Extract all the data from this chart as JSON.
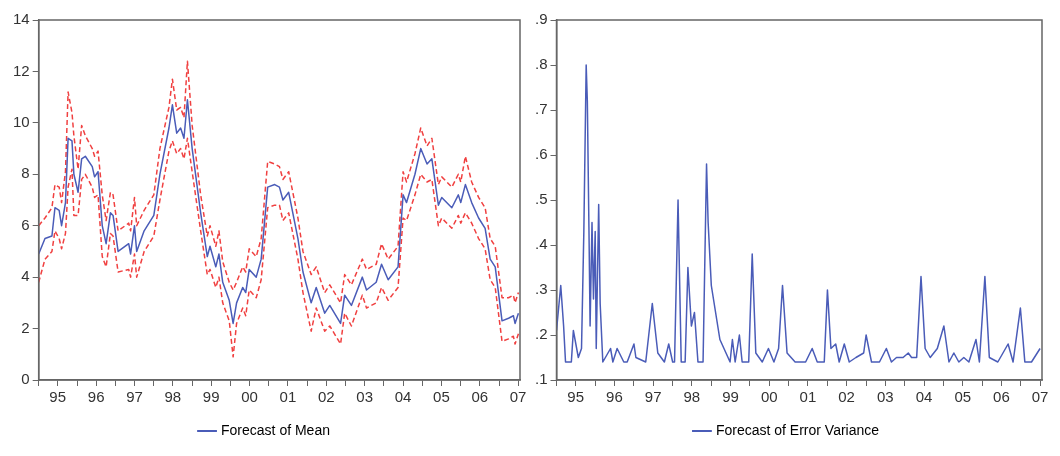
{
  "chart_data": [
    {
      "type": "line",
      "marker": "none",
      "legend": "bottom",
      "x": [
        "1995-01-01",
        "1995-03-02",
        "1995-05-07",
        "1995-06-05",
        "1995-07-15",
        "1995-08-07",
        "1995-09-13",
        "1995-10-08",
        "1995-11-14",
        "1995-12-02",
        "1996-01-11",
        "1996-02-14",
        "1996-03-20",
        "1996-05-25",
        "1996-06-16",
        "1996-07-19",
        "1996-08-28",
        "1996-10-04",
        "1996-11-14",
        "1996-12-09",
        "1997-01-26",
        "1997-05-07",
        "1997-05-25",
        "1997-07-01",
        "1997-07-22",
        "1997-10-01",
        "1998-01-01",
        "1998-02-28",
        "1998-05-25",
        "1998-06-27",
        "1998-08-07",
        "1998-09-13",
        "1998-10-15",
        "1998-11-17",
        "1999-01-01",
        "1999-03-23",
        "1999-05-25",
        "1999-06-20",
        "1999-08-14",
        "1999-09-13",
        "1999-10-19",
        "1999-12-20",
        "2000-01-26",
        "2000-02-28",
        "2000-04-26",
        "2000-05-25",
        "2000-06-27",
        "2000-09-02",
        "2000-10-19",
        "2000-12-20",
        "2001-02-25",
        "2001-04-11",
        "2001-05-14",
        "2001-07-08",
        "2001-10-04",
        "2001-11-21",
        "2002-02-07",
        "2002-03-27",
        "2002-06-16",
        "2002-08-03",
        "2002-11-14",
        "2002-12-23",
        "2003-02-25",
        "2003-06-09",
        "2003-07-19",
        "2003-10-19",
        "2003-12-09",
        "2004-02-10",
        "2004-05-14",
        "2004-07-01",
        "2004-08-03",
        "2004-10-22",
        "2004-12-16",
        "2005-02-14",
        "2005-04-01",
        "2005-06-02",
        "2005-07-04",
        "2005-10-08",
        "2005-12-09",
        "2006-01-01",
        "2006-02-14",
        "2006-04-15",
        "2006-06-20",
        "2006-08-21",
        "2006-10-08",
        "2006-11-25",
        "2007-01-29",
        "2007-04-01",
        "2007-05-17",
        "2007-06-02",
        "2007-07-04"
      ],
      "series": [
        {
          "name": "Forecast of Mean",
          "color": "#4a5cb8",
          "line_style": "solid",
          "values": [
            4.9,
            5.5,
            5.6,
            6.7,
            6.6,
            6.0,
            6.9,
            9.4,
            9.3,
            8.0,
            7.3,
            8.6,
            8.7,
            8.3,
            7.9,
            8.1,
            6.0,
            5.3,
            6.5,
            6.4,
            5.0,
            5.3,
            4.9,
            6.0,
            5.0,
            5.8,
            6.4,
            8.0,
            9.8,
            10.7,
            9.6,
            9.8,
            9.4,
            10.9,
            9.0,
            6.5,
            4.8,
            5.2,
            4.4,
            4.9,
            3.8,
            3.1,
            2.2,
            3.0,
            3.6,
            3.4,
            4.3,
            4.0,
            4.7,
            7.5,
            7.6,
            7.5,
            7.0,
            7.3,
            5.5,
            4.2,
            3.0,
            3.6,
            2.6,
            2.9,
            2.2,
            3.3,
            2.9,
            4.0,
            3.5,
            3.8,
            4.5,
            3.9,
            4.4,
            7.2,
            6.9,
            8.0,
            9.0,
            8.4,
            8.6,
            6.8,
            7.1,
            6.7,
            7.2,
            6.9,
            7.6,
            6.9,
            6.3,
            5.9,
            4.7,
            4.4,
            2.3,
            2.4,
            2.5,
            2.2,
            2.6
          ]
        },
        {
          "color": "#f04040",
          "line_style": "dashed",
          "values": [
            6.0,
            6.3,
            6.7,
            7.6,
            7.5,
            6.9,
            8.1,
            11.2,
            10.4,
            9.5,
            8.2,
            9.9,
            9.5,
            9.0,
            8.7,
            8.9,
            7.2,
            6.2,
            7.3,
            7.2,
            5.8,
            6.1,
            5.8,
            7.1,
            6.0,
            6.6,
            7.2,
            9.0,
            10.6,
            11.7,
            10.5,
            10.6,
            10.2,
            12.4,
            9.9,
            7.2,
            5.6,
            6.0,
            5.2,
            5.8,
            4.6,
            3.8,
            3.5,
            3.8,
            4.4,
            4.2,
            5.1,
            4.8,
            5.5,
            8.5,
            8.4,
            8.3,
            7.8,
            8.1,
            6.3,
            5.0,
            4.1,
            4.4,
            3.4,
            3.7,
            3.0,
            4.1,
            3.7,
            4.7,
            4.3,
            4.5,
            5.3,
            4.7,
            5.2,
            8.1,
            7.7,
            8.8,
            9.8,
            9.1,
            9.4,
            7.6,
            7.9,
            7.5,
            8.0,
            7.7,
            8.7,
            7.7,
            7.1,
            6.7,
            5.5,
            5.2,
            3.2,
            3.2,
            3.3,
            3.0,
            3.4
          ]
        },
        {
          "color": "#f04040",
          "line_style": "dashed",
          "values": [
            3.8,
            4.7,
            5.0,
            5.8,
            5.5,
            5.1,
            5.7,
            7.5,
            8.2,
            6.4,
            6.4,
            7.8,
            8.0,
            7.5,
            7.1,
            7.2,
            4.8,
            4.4,
            5.7,
            5.6,
            4.2,
            4.3,
            4.0,
            4.9,
            4.0,
            5.0,
            5.6,
            7.0,
            8.9,
            9.3,
            8.8,
            9.0,
            8.6,
            9.4,
            8.1,
            5.8,
            4.1,
            4.3,
            3.6,
            4.0,
            3.0,
            2.3,
            0.9,
            2.2,
            2.8,
            2.5,
            3.5,
            3.2,
            3.9,
            6.7,
            6.8,
            6.8,
            6.2,
            6.5,
            4.7,
            3.4,
            1.9,
            2.8,
            1.9,
            2.1,
            1.4,
            2.6,
            2.1,
            3.3,
            2.8,
            3.0,
            3.6,
            3.1,
            3.6,
            6.3,
            6.2,
            7.2,
            8.0,
            7.7,
            7.8,
            6.0,
            6.3,
            5.9,
            6.4,
            6.1,
            6.5,
            6.1,
            5.5,
            5.1,
            3.9,
            3.6,
            1.5,
            1.6,
            1.7,
            1.4,
            1.8
          ]
        }
      ],
      "xlim": [
        "1995-01-01",
        "2007-07-19"
      ],
      "xticks": [
        {
          "value": "1995-01-01",
          "label": null
        },
        {
          "value": "1995-07-01",
          "label": "95"
        },
        {
          "value": "1996-01-01",
          "label": null
        },
        {
          "value": "1996-07-01",
          "label": "96"
        },
        {
          "value": "1997-01-01",
          "label": null
        },
        {
          "value": "1997-07-01",
          "label": "97"
        },
        {
          "value": "1998-01-01",
          "label": null
        },
        {
          "value": "1998-07-01",
          "label": "98"
        },
        {
          "value": "1999-01-01",
          "label": null
        },
        {
          "value": "1999-07-01",
          "label": "99"
        },
        {
          "value": "2000-01-01",
          "label": null
        },
        {
          "value": "2000-07-01",
          "label": "00"
        },
        {
          "value": "2001-01-01",
          "label": null
        },
        {
          "value": "2001-07-01",
          "label": "01"
        },
        {
          "value": "2002-01-01",
          "label": null
        },
        {
          "value": "2002-07-01",
          "label": "02"
        },
        {
          "value": "2003-01-01",
          "label": null
        },
        {
          "value": "2003-07-01",
          "label": "03"
        },
        {
          "value": "2004-01-01",
          "label": null
        },
        {
          "value": "2004-07-01",
          "label": "04"
        },
        {
          "value": "2005-01-01",
          "label": null
        },
        {
          "value": "2005-07-01",
          "label": "05"
        },
        {
          "value": "2006-01-01",
          "label": null
        },
        {
          "value": "2006-07-01",
          "label": "06"
        },
        {
          "value": "2007-01-01",
          "label": null
        },
        {
          "value": "2007-07-01",
          "label": "07"
        }
      ],
      "ylim": [
        0,
        14
      ],
      "yticks": [
        0,
        2,
        4,
        6,
        8,
        10,
        12,
        14
      ]
    },
    {
      "type": "line",
      "marker": "none",
      "legend": "bottom",
      "x": [
        "1995-01-01",
        "1995-02-10",
        "1995-03-09",
        "1995-03-27",
        "1995-05-21",
        "1995-06-09",
        "1995-07-26",
        "1995-08-25",
        "1995-09-16",
        "1995-10-08",
        "1995-10-19",
        "1995-11-03",
        "1995-11-14",
        "1995-12-02",
        "1995-12-16",
        "1996-01-01",
        "1996-01-11",
        "1996-02-03",
        "1996-02-17",
        "1996-03-13",
        "1996-05-25",
        "1996-06-16",
        "1996-07-26",
        "1996-09-27",
        "1996-10-29",
        "1997-01-01",
        "1997-01-19",
        "1997-04-22",
        "1997-06-23",
        "1997-08-14",
        "1997-10-15",
        "1997-11-25",
        "1998-01-01",
        "1998-01-19",
        "1998-02-21",
        "1998-03-23",
        "1998-04-29",
        "1998-05-25",
        "1998-06-27",
        "1998-07-26",
        "1998-08-28",
        "1998-10-15",
        "1998-11-17",
        "1998-12-02",
        "1999-01-01",
        "1999-03-23",
        "1999-06-27",
        "1999-07-19",
        "1999-08-14",
        "1999-09-23",
        "1999-10-19",
        "1999-12-20",
        "2000-01-22",
        "2000-02-25",
        "2000-04-26",
        "2000-06-23",
        "2000-08-14",
        "2000-09-27",
        "2000-11-03",
        "2000-12-16",
        "2001-03-02",
        "2001-06-09",
        "2001-08-10",
        "2001-09-27",
        "2001-12-02",
        "2002-01-01",
        "2002-02-03",
        "2002-03-20",
        "2002-04-22",
        "2002-06-09",
        "2002-07-26",
        "2002-09-27",
        "2002-12-09",
        "2003-01-01",
        "2003-02-21",
        "2003-05-07",
        "2003-07-11",
        "2003-08-28",
        "2003-10-15",
        "2003-12-16",
        "2004-02-03",
        "2004-03-05",
        "2004-04-22",
        "2004-06-02",
        "2004-07-11",
        "2004-08-28",
        "2004-11-03",
        "2005-01-04",
        "2005-02-21",
        "2005-04-08",
        "2005-05-25",
        "2005-07-11",
        "2005-08-28",
        "2005-11-03",
        "2005-12-05",
        "2006-01-26",
        "2006-03-09",
        "2006-05-28",
        "2006-09-02",
        "2006-10-19",
        "2006-12-27",
        "2007-02-07",
        "2007-04-11",
        "2007-07-01"
      ],
      "series": [
        {
          "name": "Forecast of Error Variance",
          "color": "#4a5cb8",
          "line_style": "solid",
          "values": [
            0.21,
            0.31,
            0.22,
            0.14,
            0.14,
            0.21,
            0.15,
            0.17,
            0.43,
            0.8,
            0.72,
            0.44,
            0.22,
            0.45,
            0.28,
            0.43,
            0.17,
            0.49,
            0.27,
            0.14,
            0.17,
            0.14,
            0.17,
            0.14,
            0.14,
            0.18,
            0.15,
            0.14,
            0.27,
            0.16,
            0.14,
            0.18,
            0.14,
            0.14,
            0.5,
            0.14,
            0.14,
            0.35,
            0.22,
            0.25,
            0.14,
            0.14,
            0.58,
            0.45,
            0.31,
            0.19,
            0.14,
            0.19,
            0.14,
            0.2,
            0.14,
            0.14,
            0.38,
            0.16,
            0.14,
            0.17,
            0.14,
            0.17,
            0.31,
            0.16,
            0.14,
            0.14,
            0.17,
            0.14,
            0.14,
            0.3,
            0.17,
            0.18,
            0.14,
            0.18,
            0.14,
            0.15,
            0.16,
            0.2,
            0.14,
            0.14,
            0.17,
            0.14,
            0.15,
            0.15,
            0.16,
            0.15,
            0.15,
            0.33,
            0.17,
            0.15,
            0.17,
            0.22,
            0.14,
            0.16,
            0.14,
            0.15,
            0.14,
            0.19,
            0.14,
            0.33,
            0.15,
            0.14,
            0.18,
            0.14,
            0.26,
            0.14,
            0.14,
            0.17
          ]
        }
      ],
      "xlim": [
        "1995-01-01",
        "2007-07-19"
      ],
      "xticks": [
        {
          "value": "1995-01-01",
          "label": null
        },
        {
          "value": "1995-07-01",
          "label": "95"
        },
        {
          "value": "1996-01-01",
          "label": null
        },
        {
          "value": "1996-07-01",
          "label": "96"
        },
        {
          "value": "1997-01-01",
          "label": null
        },
        {
          "value": "1997-07-01",
          "label": "97"
        },
        {
          "value": "1998-01-01",
          "label": null
        },
        {
          "value": "1998-07-01",
          "label": "98"
        },
        {
          "value": "1999-01-01",
          "label": null
        },
        {
          "value": "1999-07-01",
          "label": "99"
        },
        {
          "value": "2000-01-01",
          "label": null
        },
        {
          "value": "2000-07-01",
          "label": "00"
        },
        {
          "value": "2001-01-01",
          "label": null
        },
        {
          "value": "2001-07-01",
          "label": "01"
        },
        {
          "value": "2002-01-01",
          "label": null
        },
        {
          "value": "2002-07-01",
          "label": "02"
        },
        {
          "value": "2003-01-01",
          "label": null
        },
        {
          "value": "2003-07-01",
          "label": "03"
        },
        {
          "value": "2004-01-01",
          "label": null
        },
        {
          "value": "2004-07-01",
          "label": "04"
        },
        {
          "value": "2005-01-01",
          "label": null
        },
        {
          "value": "2005-07-01",
          "label": "05"
        },
        {
          "value": "2006-01-01",
          "label": null
        },
        {
          "value": "2006-07-01",
          "label": "06"
        },
        {
          "value": "2007-01-01",
          "label": null
        },
        {
          "value": "2007-07-01",
          "label": "07"
        }
      ],
      "ylim": [
        0.1,
        0.9
      ],
      "yticks": [
        {
          "value": 0.1,
          "label": ".1"
        },
        {
          "value": 0.2,
          "label": ".2"
        },
        {
          "value": 0.3,
          "label": ".3"
        },
        {
          "value": 0.4,
          "label": ".4"
        },
        {
          "value": 0.5,
          "label": ".5"
        },
        {
          "value": 0.6,
          "label": ".6"
        },
        {
          "value": 0.7,
          "label": ".7"
        },
        {
          "value": 0.8,
          "label": ".8"
        },
        {
          "value": 0.9,
          "label": ".9"
        }
      ]
    }
  ]
}
